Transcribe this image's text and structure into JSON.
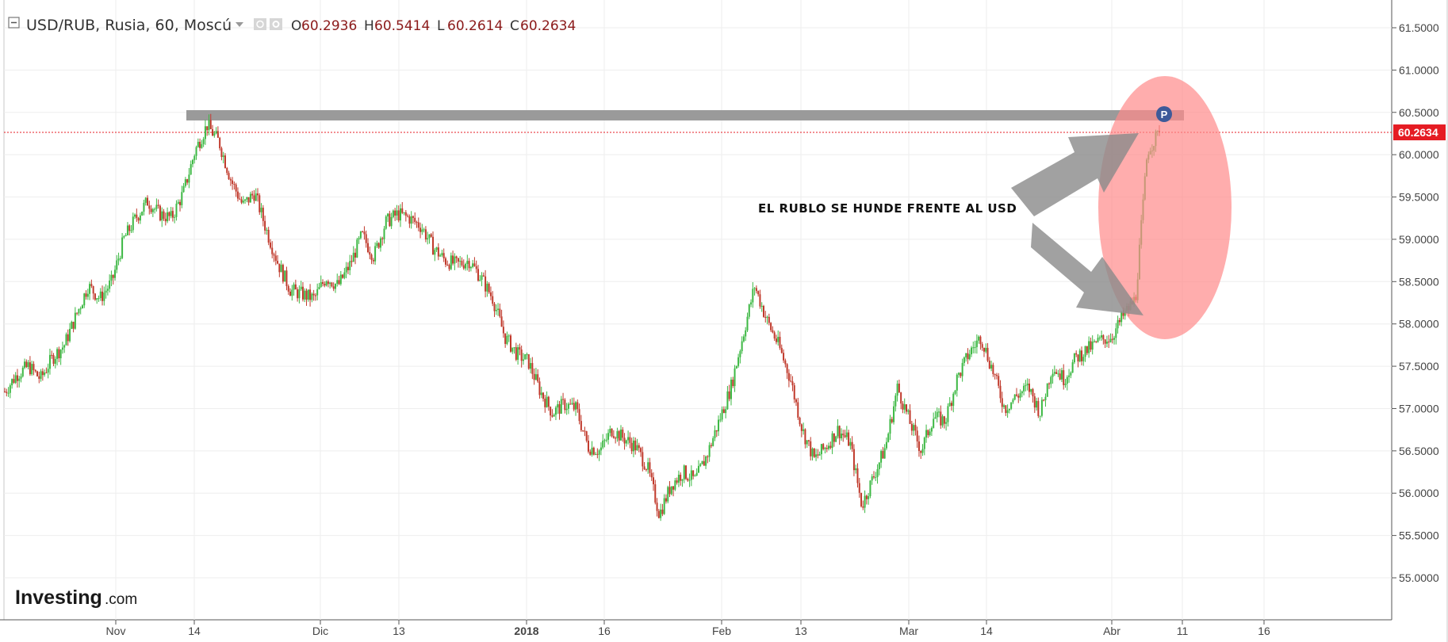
{
  "header": {
    "collapse_icon": "minus-square-icon",
    "symbol": "USD/RUB, Rusia, 60, Moscú",
    "dropdown_icon": "caret-down-icon",
    "eye_icon": "eye-icon",
    "settings_icon": "gear-icon",
    "ohlc": [
      {
        "key": "O",
        "value": "60.2936"
      },
      {
        "key": "H",
        "value": "60.5414"
      },
      {
        "key": "L",
        "value": "60.2614"
      },
      {
        "key": "C",
        "value": "60.2634"
      }
    ]
  },
  "annotation": {
    "text": "EL RUBLO SE HUNDE FRENTE AL USD",
    "marker_letter": "P"
  },
  "logo": {
    "main": "Investing",
    "suffix": ".com"
  },
  "colors": {
    "up": "#3cb843",
    "down": "#c0392b",
    "last_price": "#e51c23",
    "highlight_ellipse": "#ff8a8a",
    "resistance_bar": "#9a9a9a",
    "arrow": "#9a9a9a",
    "marker": "#3d5a99"
  },
  "chart_data": {
    "type": "candlestick",
    "y_ticks": [
      "61.5000",
      "61.0000",
      "60.5000",
      "60.0000",
      "59.5000",
      "59.0000",
      "58.5000",
      "58.0000",
      "57.5000",
      "57.0000",
      "56.5000",
      "56.0000",
      "55.5000",
      "55.0000"
    ],
    "ylim": [
      54.5,
      61.7
    ],
    "x_ticks": [
      {
        "label": "Nov",
        "bold": false
      },
      {
        "label": "14",
        "bold": false
      },
      {
        "label": "Dic",
        "bold": false
      },
      {
        "label": "13",
        "bold": false
      },
      {
        "label": "2018",
        "bold": true
      },
      {
        "label": "16",
        "bold": false
      },
      {
        "label": "Feb",
        "bold": false
      },
      {
        "label": "13",
        "bold": false
      },
      {
        "label": "Mar",
        "bold": false
      },
      {
        "label": "14",
        "bold": false
      },
      {
        "label": "Abr",
        "bold": false
      },
      {
        "label": "11",
        "bold": false
      },
      {
        "label": "16",
        "bold": false
      }
    ],
    "last_price": "60.2634",
    "resistance_level": 60.47,
    "series_approx_closes": [
      57.2,
      57.4,
      57.5,
      57.35,
      57.6,
      57.75,
      58.1,
      58.45,
      58.3,
      58.5,
      59.0,
      59.25,
      59.45,
      59.3,
      59.25,
      59.55,
      60.05,
      60.35,
      60.15,
      59.7,
      59.4,
      59.55,
      59.1,
      58.7,
      58.4,
      58.35,
      58.3,
      58.55,
      58.45,
      58.7,
      59.05,
      58.8,
      59.2,
      59.3,
      59.25,
      59.15,
      58.9,
      58.75,
      58.7,
      58.75,
      58.55,
      58.3,
      57.85,
      57.65,
      57.55,
      57.2,
      56.95,
      57.05,
      57.0,
      56.55,
      56.5,
      56.75,
      56.65,
      56.55,
      56.3,
      55.75,
      56.1,
      56.25,
      56.15,
      56.45,
      56.85,
      57.25,
      57.85,
      58.45,
      58.05,
      57.75,
      57.35,
      56.75,
      56.4,
      56.55,
      56.75,
      56.6,
      55.85,
      56.2,
      56.55,
      57.25,
      56.85,
      56.5,
      56.9,
      56.85,
      57.35,
      57.65,
      57.85,
      57.45,
      57.0,
      57.15,
      57.25,
      56.95,
      57.5,
      57.35,
      57.6,
      57.7,
      57.8,
      57.85,
      58.1,
      58.3,
      60.05,
      60.26
    ]
  }
}
